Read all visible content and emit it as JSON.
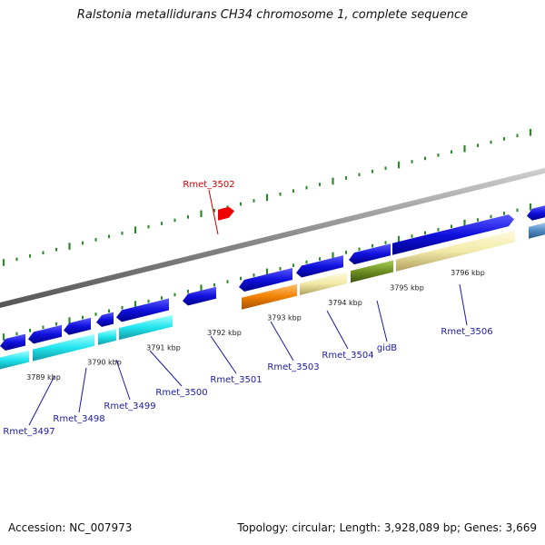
{
  "title": "Ralstonia metallidurans CH34 chromosome 1, complete sequence",
  "footer": {
    "accession": "Accession: NC_007973",
    "summary": "Topology: circular; Length: 3,928,089 bp; Genes: 3,669"
  },
  "colors": {
    "backbone": "#8a8a8a",
    "gene_blue": "#1010dd",
    "gene_cyan": "#22e5ee",
    "gene_orange": "#f08000",
    "gene_tan": "#f2eaa8",
    "gene_olive": "#6e8f22",
    "gene_steel": "#4e88c0",
    "highlight": "#ee0000",
    "label_blue": "#1a1aa8",
    "label_red": "#cc0000",
    "tick": "#2a8a2a"
  },
  "kbp_labels": [
    "3789 kbp",
    "3790 kbp",
    "3791 kbp",
    "3792 kbp",
    "3793 kbp",
    "3794 kbp",
    "3795 kbp",
    "3796 kbp"
  ],
  "gene_labels": [
    {
      "text": "Rmet_3497",
      "color": "blue"
    },
    {
      "text": "Rmet_3498",
      "color": "blue"
    },
    {
      "text": "Rmet_3499",
      "color": "blue"
    },
    {
      "text": "Rmet_3500",
      "color": "blue"
    },
    {
      "text": "Rmet_3501",
      "color": "blue"
    },
    {
      "text": "Rmet_3502",
      "color": "red"
    },
    {
      "text": "Rmet_3503",
      "color": "blue"
    },
    {
      "text": "Rmet_3504",
      "color": "blue"
    },
    {
      "text": "gidB",
      "color": "blue"
    },
    {
      "text": "Rmet_3506",
      "color": "blue"
    }
  ]
}
